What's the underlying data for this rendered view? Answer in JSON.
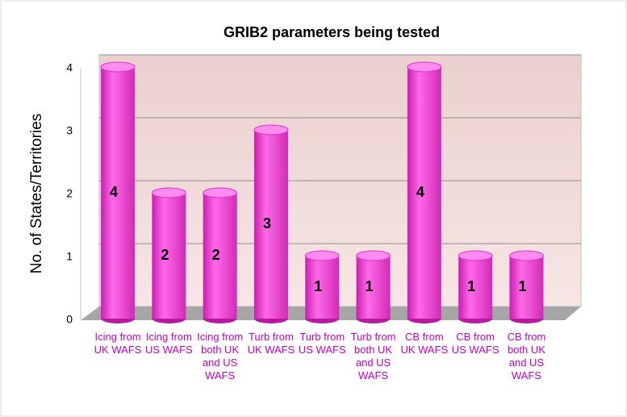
{
  "chart_data": {
    "type": "bar3d",
    "title": "GRIB2 parameters being tested",
    "y_label": "No. of States/Territories",
    "categories": [
      "Icing from UK WAFS",
      "Icing from US WAFS",
      "Icing from both UK and US WAFS",
      "Turb from UK WAFS",
      "Turb from US WAFS",
      "Turb from both UK and US WAFS",
      "CB from UK WAFS",
      "CB from US WAFS",
      "CB from both UK and US WAFS"
    ],
    "values": [
      4,
      2,
      2,
      3,
      1,
      1,
      4,
      1,
      1
    ],
    "color": "#f03cd8",
    "ylim": [
      0,
      4
    ],
    "yticks": [
      0,
      1,
      2,
      3,
      4
    ],
    "grid": true
  }
}
